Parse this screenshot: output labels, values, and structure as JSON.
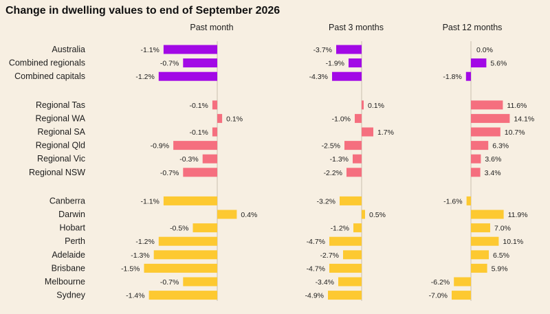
{
  "colors": {
    "background": "#f7efe2",
    "national": "#a209e6",
    "regional": "#f56f7f",
    "capitals": "#fdc931"
  },
  "chart_data": {
    "type": "bar",
    "orientation": "horizontal",
    "title": "Change in dwelling values to end of September 2026",
    "panels": [
      {
        "name": "Past month",
        "xlim": [
          -1.6,
          0.6
        ]
      },
      {
        "name": "Past 3 months",
        "xlim": [
          -5.6,
          2.0
        ]
      },
      {
        "name": "Past 12 months",
        "xlim": [
          -7.5,
          15.5
        ]
      }
    ],
    "groups": [
      {
        "color_key": "national",
        "rows": [
          {
            "label": "Australia",
            "values": [
              -1.1,
              -3.7,
              0.0
            ],
            "value_labels": [
              "-1.1%",
              "-3.7%",
              "0.0%"
            ]
          },
          {
            "label": "Combined regionals",
            "values": [
              -0.7,
              -1.9,
              5.6
            ],
            "value_labels": [
              "-0.7%",
              "-1.9%",
              "5.6%"
            ]
          },
          {
            "label": "Combined capitals",
            "values": [
              -1.2,
              -4.3,
              -1.8
            ],
            "value_labels": [
              "-1.2%",
              "-4.3%",
              "-1.8%"
            ]
          }
        ]
      },
      {
        "color_key": "regional",
        "rows": [
          {
            "label": "Regional Tas",
            "values": [
              -0.1,
              0.1,
              11.6
            ],
            "value_labels": [
              "-0.1%",
              "0.1%",
              "11.6%"
            ]
          },
          {
            "label": "Regional WA",
            "values": [
              0.1,
              -1.0,
              14.1
            ],
            "value_labels": [
              "0.1%",
              "-1.0%",
              "14.1%"
            ]
          },
          {
            "label": "Regional SA",
            "values": [
              -0.1,
              1.7,
              10.7
            ],
            "value_labels": [
              "-0.1%",
              "1.7%",
              "10.7%"
            ]
          },
          {
            "label": "Regional Qld",
            "values": [
              -0.9,
              -2.5,
              6.3
            ],
            "value_labels": [
              "-0.9%",
              "-2.5%",
              "6.3%"
            ]
          },
          {
            "label": "Regional Vic",
            "values": [
              -0.3,
              -1.3,
              3.6
            ],
            "value_labels": [
              "-0.3%",
              "-1.3%",
              "3.6%"
            ]
          },
          {
            "label": "Regional NSW",
            "values": [
              -0.7,
              -2.2,
              3.4
            ],
            "value_labels": [
              "-0.7%",
              "-2.2%",
              "3.4%"
            ]
          }
        ]
      },
      {
        "color_key": "capitals",
        "rows": [
          {
            "label": "Canberra",
            "values": [
              -1.1,
              -3.2,
              -1.6
            ],
            "value_labels": [
              "-1.1%",
              "-3.2%",
              "-1.6%"
            ]
          },
          {
            "label": "Darwin",
            "values": [
              0.4,
              0.5,
              11.9
            ],
            "value_labels": [
              "0.4%",
              "0.5%",
              "11.9%"
            ]
          },
          {
            "label": "Hobart",
            "values": [
              -0.5,
              -1.2,
              7.0
            ],
            "value_labels": [
              "-0.5%",
              "-1.2%",
              "7.0%"
            ]
          },
          {
            "label": "Perth",
            "values": [
              -1.2,
              -4.7,
              10.1
            ],
            "value_labels": [
              "-1.2%",
              "-4.7%",
              "10.1%"
            ]
          },
          {
            "label": "Adelaide",
            "values": [
              -1.3,
              -2.7,
              6.5
            ],
            "value_labels": [
              "-1.3%",
              "-2.7%",
              "6.5%"
            ]
          },
          {
            "label": "Brisbane",
            "values": [
              -1.5,
              -4.7,
              5.9
            ],
            "value_labels": [
              "-1.5%",
              "-4.7%",
              "5.9%"
            ]
          },
          {
            "label": "Melbourne",
            "values": [
              -0.7,
              -3.4,
              -6.2
            ],
            "value_labels": [
              "-0.7%",
              "-3.4%",
              "-6.2%"
            ]
          },
          {
            "label": "Sydney",
            "values": [
              -1.4,
              -4.9,
              -7.0
            ],
            "value_labels": [
              "-1.4%",
              "-4.9%",
              "-7.0%"
            ]
          }
        ]
      }
    ]
  }
}
